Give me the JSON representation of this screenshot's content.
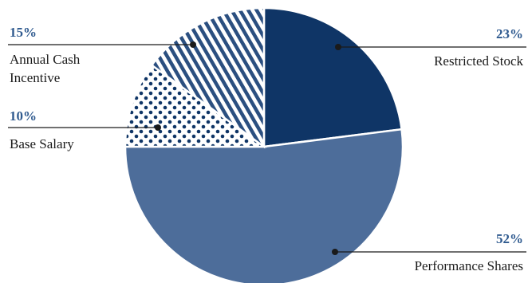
{
  "chart_data": {
    "type": "pie",
    "slices": [
      {
        "label": "Restricted Stock",
        "percent_label": "23%",
        "value": 23,
        "color": "#0f3566",
        "pattern": "solid"
      },
      {
        "label": "Performance Shares",
        "percent_label": "52%",
        "value": 52,
        "color": "#4d6d9a",
        "pattern": "solid"
      },
      {
        "label_lines": [
          "Base Salary"
        ],
        "percent_label": "10%",
        "value": 10,
        "color": "#0f3566",
        "pattern": "dots"
      },
      {
        "label_lines": [
          "Annual Cash",
          "Incentive"
        ],
        "percent_label": "15%",
        "value": 15,
        "color": "#2b4f80",
        "pattern": "diagonal-stripes"
      }
    ],
    "legend": "callout-labels"
  }
}
